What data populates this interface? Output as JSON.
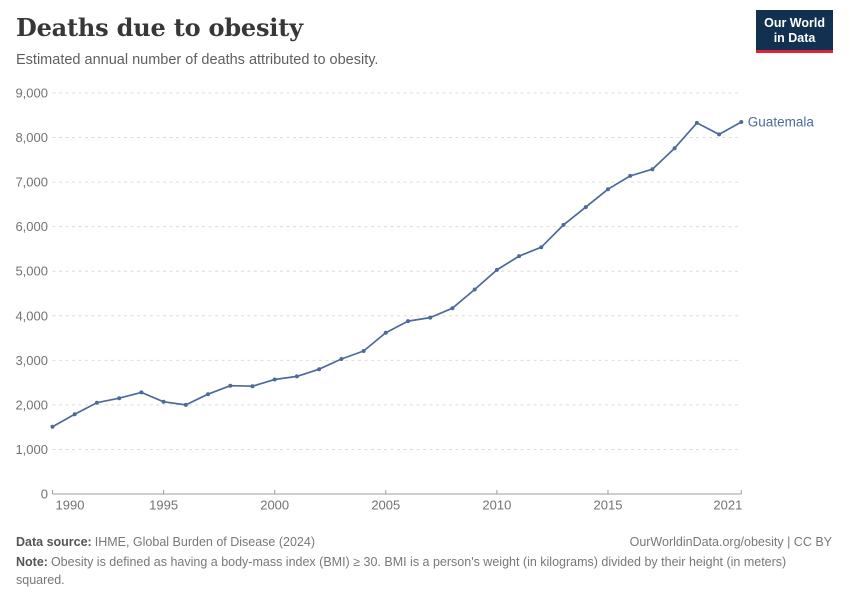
{
  "header": {
    "title": "Deaths due to obesity",
    "subtitle": "Estimated annual number of deaths attributed to obesity."
  },
  "logo": {
    "line1": "Our World",
    "line2": "in Data"
  },
  "footer": {
    "data_source_label": "Data source:",
    "data_source_value": "IHME, Global Burden of Disease (2024)",
    "attribution": "OurWorldinData.org/obesity | CC BY",
    "note_label": "Note:",
    "note_text": "Obesity is defined as having a body-mass index (BMI) ≥ 30. BMI is a person's weight (in kilograms) divided by their height (in meters) squared."
  },
  "colors": {
    "line_blue": "#4C6A9C",
    "grid": "#dcdcdc",
    "axis": "#9c9c9c",
    "tick_label": "#737373",
    "logo_navy": "#12304f",
    "logo_red": "#e0233c"
  },
  "chart_data": {
    "type": "line",
    "title": "Deaths due to obesity",
    "subtitle": "Estimated annual number of deaths attributed to obesity.",
    "xlabel": "",
    "ylabel": "",
    "xlim": [
      1990,
      2021
    ],
    "ylim": [
      0,
      9000
    ],
    "x_ticks": [
      1990,
      1995,
      2000,
      2005,
      2010,
      2015,
      2021
    ],
    "y_ticks": [
      0,
      1000,
      2000,
      3000,
      4000,
      5000,
      6000,
      7000,
      8000,
      9000
    ],
    "grid": "horizontal dashed",
    "legend": "end-of-line label",
    "series": [
      {
        "name": "Guatemala",
        "color": "#4C6A9C",
        "x": [
          1990,
          1991,
          1992,
          1993,
          1994,
          1995,
          1996,
          1997,
          1998,
          1999,
          2000,
          2001,
          2002,
          2003,
          2004,
          2005,
          2006,
          2007,
          2008,
          2009,
          2010,
          2011,
          2012,
          2013,
          2014,
          2015,
          2016,
          2017,
          2018,
          2019,
          2020,
          2021
        ],
        "values": [
          1510,
          1790,
          2050,
          2150,
          2280,
          2070,
          2000,
          2240,
          2430,
          2420,
          2570,
          2640,
          2800,
          3030,
          3210,
          3620,
          3880,
          3960,
          4170,
          4590,
          5030,
          5340,
          5540,
          6040,
          6440,
          6840,
          7140,
          7290,
          7760,
          8330,
          8070,
          8350
        ]
      }
    ]
  }
}
